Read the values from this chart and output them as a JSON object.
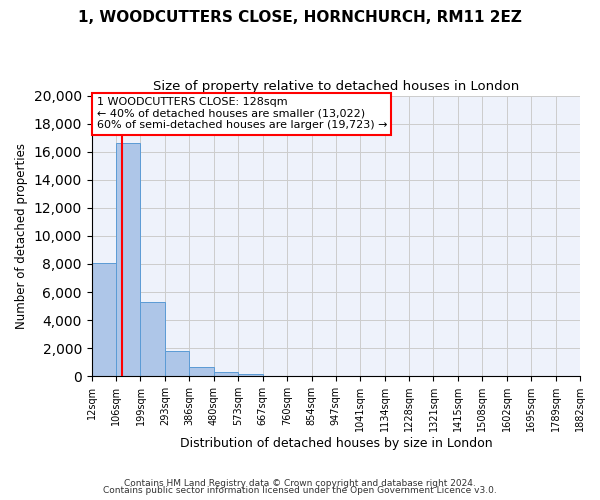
{
  "title": "1, WOODCUTTERS CLOSE, HORNCHURCH, RM11 2EZ",
  "subtitle": "Size of property relative to detached houses in London",
  "xlabel": "Distribution of detached houses by size in London",
  "ylabel": "Number of detached properties",
  "bin_labels": [
    "12sqm",
    "106sqm",
    "199sqm",
    "293sqm",
    "386sqm",
    "480sqm",
    "573sqm",
    "667sqm",
    "760sqm",
    "854sqm",
    "947sqm",
    "1041sqm",
    "1134sqm",
    "1228sqm",
    "1321sqm",
    "1415sqm",
    "1508sqm",
    "1602sqm",
    "1695sqm",
    "1789sqm",
    "1882sqm"
  ],
  "bin_edges": [
    12,
    106,
    199,
    293,
    386,
    480,
    573,
    667,
    760,
    854,
    947,
    1041,
    1134,
    1228,
    1321,
    1415,
    1508,
    1602,
    1695,
    1789,
    1882
  ],
  "bar_heights": [
    8100,
    16600,
    5300,
    1800,
    650,
    300,
    150,
    0,
    0,
    0,
    0,
    0,
    0,
    0,
    0,
    0,
    0,
    0,
    0,
    0
  ],
  "bar_color": "#aec6e8",
  "bar_edge_color": "#5b9bd5",
  "red_line_x": 128,
  "vline_color": "red",
  "annotation_line1": "1 WOODCUTTERS CLOSE: 128sqm",
  "annotation_line2": "← 40% of detached houses are smaller (13,022)",
  "annotation_line3": "60% of semi-detached houses are larger (19,723) →",
  "annotation_box_color": "white",
  "annotation_box_edge_color": "red",
  "ylim": [
    0,
    20000
  ],
  "yticks": [
    0,
    2000,
    4000,
    6000,
    8000,
    10000,
    12000,
    14000,
    16000,
    18000,
    20000
  ],
  "footer1": "Contains HM Land Registry data © Crown copyright and database right 2024.",
  "footer2": "Contains public sector information licensed under the Open Government Licence v3.0.",
  "title_fontsize": 11,
  "subtitle_fontsize": 9.5,
  "xlabel_fontsize": 9,
  "ylabel_fontsize": 8.5,
  "bg_color": "#eef2fb"
}
